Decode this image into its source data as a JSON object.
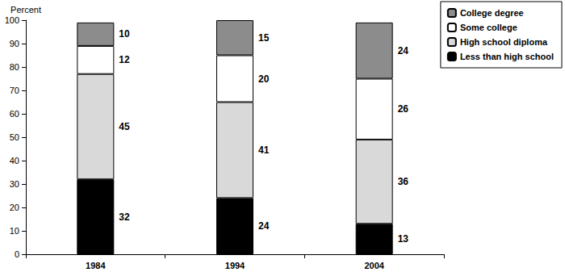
{
  "chart_data": {
    "type": "bar",
    "stacked": true,
    "data_labels": true,
    "grid": false,
    "legend": "right",
    "y_label": "Percent",
    "categories": [
      "1984",
      "1994",
      "2004"
    ],
    "ylim": [
      0,
      100
    ],
    "yticks": [
      0,
      10,
      20,
      30,
      40,
      50,
      60,
      70,
      80,
      90,
      100
    ],
    "series": [
      {
        "name": "Less than high school",
        "color": "#000000",
        "values": [
          32,
          24,
          13
        ]
      },
      {
        "name": "High school diploma",
        "color": "#d9d9d9",
        "values": [
          45,
          41,
          36
        ]
      },
      {
        "name": "Some college",
        "color": "#ffffff",
        "values": [
          12,
          20,
          26
        ]
      },
      {
        "name": "College degree",
        "color": "#8c8c8c",
        "values": [
          10,
          15,
          24
        ]
      }
    ]
  }
}
